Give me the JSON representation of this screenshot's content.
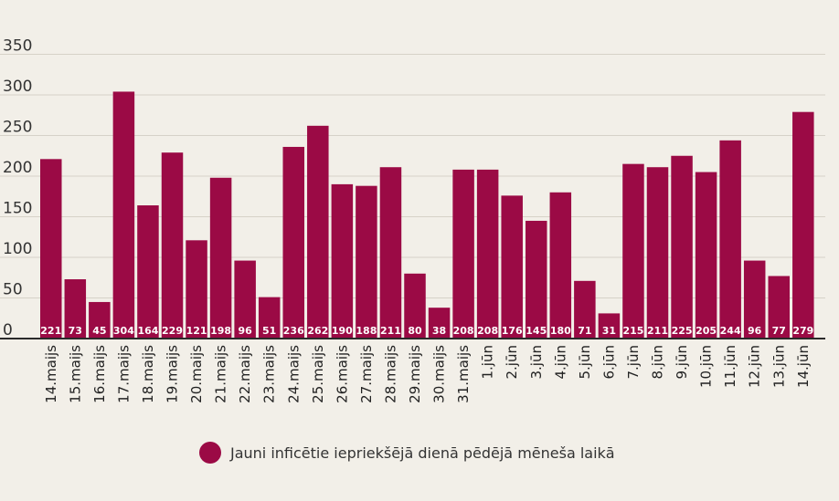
{
  "chart_data": {
    "type": "bar",
    "categories": [
      "14.maijs",
      "15.maijs",
      "16.maijs",
      "17.maijs",
      "18.maijs",
      "19.maijs",
      "20.maijs",
      "21.maijs",
      "22.maijs",
      "23.maijs",
      "24.maijs",
      "25.maijs",
      "26.maijs",
      "27.maijs",
      "28.maijs",
      "29.maijs",
      "30.maijs",
      "31.maijs",
      "1.jūn",
      "2.jūn",
      "3.jūn",
      "4.jūn",
      "5.jūn",
      "6.jūn",
      "7.jūn",
      "8.jūn",
      "9.jūn",
      "10.jūn",
      "11.jūn",
      "12.jūn",
      "13.jūn",
      "14.jūn"
    ],
    "series": [
      {
        "name": "Jauni inficētie iepriekšējā dienā pēdējā mēneša laikā",
        "values": [
          221,
          73,
          45,
          304,
          164,
          229,
          121,
          198,
          96,
          51,
          236,
          262,
          190,
          188,
          211,
          80,
          38,
          208,
          208,
          176,
          145,
          180,
          71,
          31,
          215,
          211,
          225,
          205,
          244,
          96,
          77,
          279
        ]
      }
    ],
    "yticks": [
      0,
      50,
      100,
      150,
      200,
      250,
      300,
      350
    ],
    "ylim": [
      0,
      350
    ],
    "grid": true,
    "legend_position": "bottom",
    "bar_color": "#9b0a45"
  },
  "legend": {
    "label": "Jauni inficētie iepriekšējā dienā pēdējā mēneša laikā"
  }
}
